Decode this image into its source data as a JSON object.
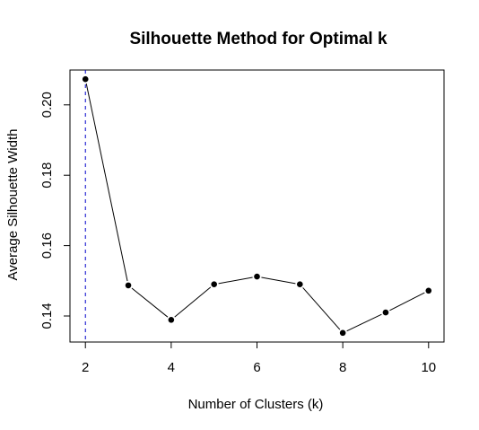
{
  "chart_data": {
    "type": "line",
    "title": "Silhouette Method for Optimal k",
    "xlabel": "Number of Clusters (k)",
    "ylabel": "Average Silhouette Width",
    "x": [
      2,
      3,
      4,
      5,
      6,
      7,
      8,
      9,
      10
    ],
    "y": [
      0.2073,
      0.1487,
      0.1389,
      0.149,
      0.1512,
      0.149,
      0.1352,
      0.141,
      0.1472
    ],
    "xlim": [
      1.64,
      10.36
    ],
    "ylim": [
      0.1326,
      0.2099
    ],
    "xticks": [
      2,
      4,
      6,
      8,
      10
    ],
    "yticks": [
      0.14,
      0.16,
      0.18,
      0.2
    ],
    "ytick_labels": [
      "0.14",
      "0.16",
      "0.18",
      "0.20"
    ],
    "optimal_k": 2,
    "vline_color": "#0000cc",
    "line_color": "#000000",
    "point_color": "#000000",
    "grid": false,
    "legend": "none"
  }
}
